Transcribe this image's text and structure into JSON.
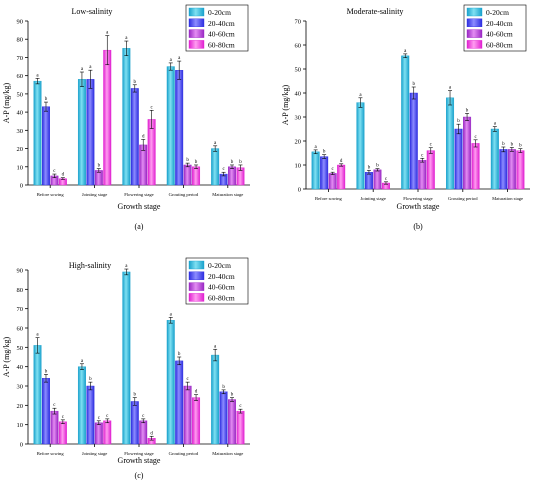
{
  "figure": {
    "legend": [
      "0-20cm",
      "20-40cm",
      "40-60cm",
      "60-80cm"
    ],
    "colors": {
      "light": [
        "#7fe0f2",
        "#8c8cff",
        "#e38cf2",
        "#ff9cf0"
      ],
      "dark": [
        "#1aa2cc",
        "#2e2ee0",
        "#9a28c4",
        "#e020d0"
      ]
    },
    "categories": [
      "Before sowing",
      "Jointing stage",
      "Flowering stage",
      "Grouting period",
      "Maturation stage"
    ],
    "xlabel": "Growth stage",
    "ylabel": "A-P (mg/kg)"
  },
  "chart_data": [
    {
      "type": "bar",
      "panel": "(a)",
      "title": "Low-salinity",
      "ylim": [
        0,
        90
      ],
      "yticks": [
        0,
        10,
        20,
        30,
        40,
        50,
        60,
        70,
        80,
        90
      ],
      "series": [
        {
          "name": "0-20cm",
          "values": [
            57,
            58,
            75,
            65,
            20
          ],
          "errors": [
            1.5,
            4,
            4,
            2,
            1.5
          ],
          "letters": [
            "a",
            "a",
            "a",
            "a",
            "a"
          ]
        },
        {
          "name": "20-40cm",
          "values": [
            43,
            58,
            53,
            63,
            6
          ],
          "errors": [
            2.5,
            5,
            2,
            5,
            1
          ],
          "letters": [
            "b",
            "a",
            "b",
            "a",
            "c"
          ]
        },
        {
          "name": "40-60cm",
          "values": [
            5,
            8,
            22,
            11,
            10
          ],
          "errors": [
            1,
            1,
            3,
            1,
            1
          ],
          "letters": [
            "c",
            "b",
            "d",
            "b",
            "b"
          ]
        },
        {
          "name": "60-80cm",
          "values": [
            3.5,
            74,
            36,
            10,
            9.5
          ],
          "errors": [
            0.5,
            8,
            5,
            1,
            1.5
          ],
          "letters": [
            "d",
            "a",
            "c",
            "b",
            "b"
          ]
        }
      ]
    },
    {
      "type": "bar",
      "panel": "(b)",
      "title": "Moderate-salinity",
      "ylim": [
        0,
        70
      ],
      "yticks": [
        0,
        10,
        20,
        30,
        40,
        50,
        60,
        70
      ],
      "series": [
        {
          "name": "0-20cm",
          "values": [
            15.5,
            36,
            55.5,
            38,
            25
          ],
          "errors": [
            0.8,
            2,
            0.8,
            3,
            1
          ],
          "letters": [
            "a",
            "a",
            "a",
            "a",
            "a"
          ]
        },
        {
          "name": "20-40cm",
          "values": [
            13.5,
            7,
            40,
            25,
            16.5
          ],
          "errors": [
            0.8,
            0.8,
            2.5,
            2,
            1
          ],
          "letters": [
            "b",
            "b",
            "b",
            "b",
            "b"
          ]
        },
        {
          "name": "40-60cm",
          "values": [
            6.5,
            8,
            12,
            30,
            16.5
          ],
          "errors": [
            0.5,
            0.5,
            0.8,
            1.5,
            0.8
          ],
          "letters": [
            "c",
            "b",
            "c",
            "b",
            "b"
          ]
        },
        {
          "name": "60-80cm",
          "values": [
            10,
            2.5,
            16,
            19,
            16
          ],
          "errors": [
            0.5,
            0.5,
            1.2,
            1.5,
            0.8
          ],
          "letters": [
            "d",
            "c",
            "c",
            "c",
            "b"
          ]
        }
      ]
    },
    {
      "type": "bar",
      "panel": "(c)",
      "title": "High-salinity",
      "ylim": [
        0,
        90
      ],
      "yticks": [
        0,
        10,
        20,
        30,
        40,
        50,
        60,
        70,
        80,
        90
      ],
      "series": [
        {
          "name": "0-20cm",
          "values": [
            51,
            40,
            89,
            64,
            46
          ],
          "errors": [
            4,
            1.5,
            1.5,
            1.5,
            3
          ],
          "letters": [
            "a",
            "a",
            "a",
            "a",
            "a"
          ]
        },
        {
          "name": "20-40cm",
          "values": [
            34,
            30,
            22,
            43,
            27
          ],
          "errors": [
            2,
            2,
            2,
            2,
            1
          ],
          "letters": [
            "b",
            "b",
            "b",
            "b",
            "b"
          ]
        },
        {
          "name": "40-60cm",
          "values": [
            17,
            11,
            12,
            30,
            23
          ],
          "errors": [
            1.5,
            1,
            1,
            2,
            1
          ],
          "letters": [
            "c",
            "c",
            "c",
            "c",
            "b"
          ]
        },
        {
          "name": "60-80cm",
          "values": [
            11.5,
            12,
            3,
            24,
            17
          ],
          "errors": [
            1,
            1,
            1,
            1.5,
            1
          ],
          "letters": [
            "c",
            "c",
            "d",
            "d",
            "c"
          ]
        }
      ]
    }
  ]
}
